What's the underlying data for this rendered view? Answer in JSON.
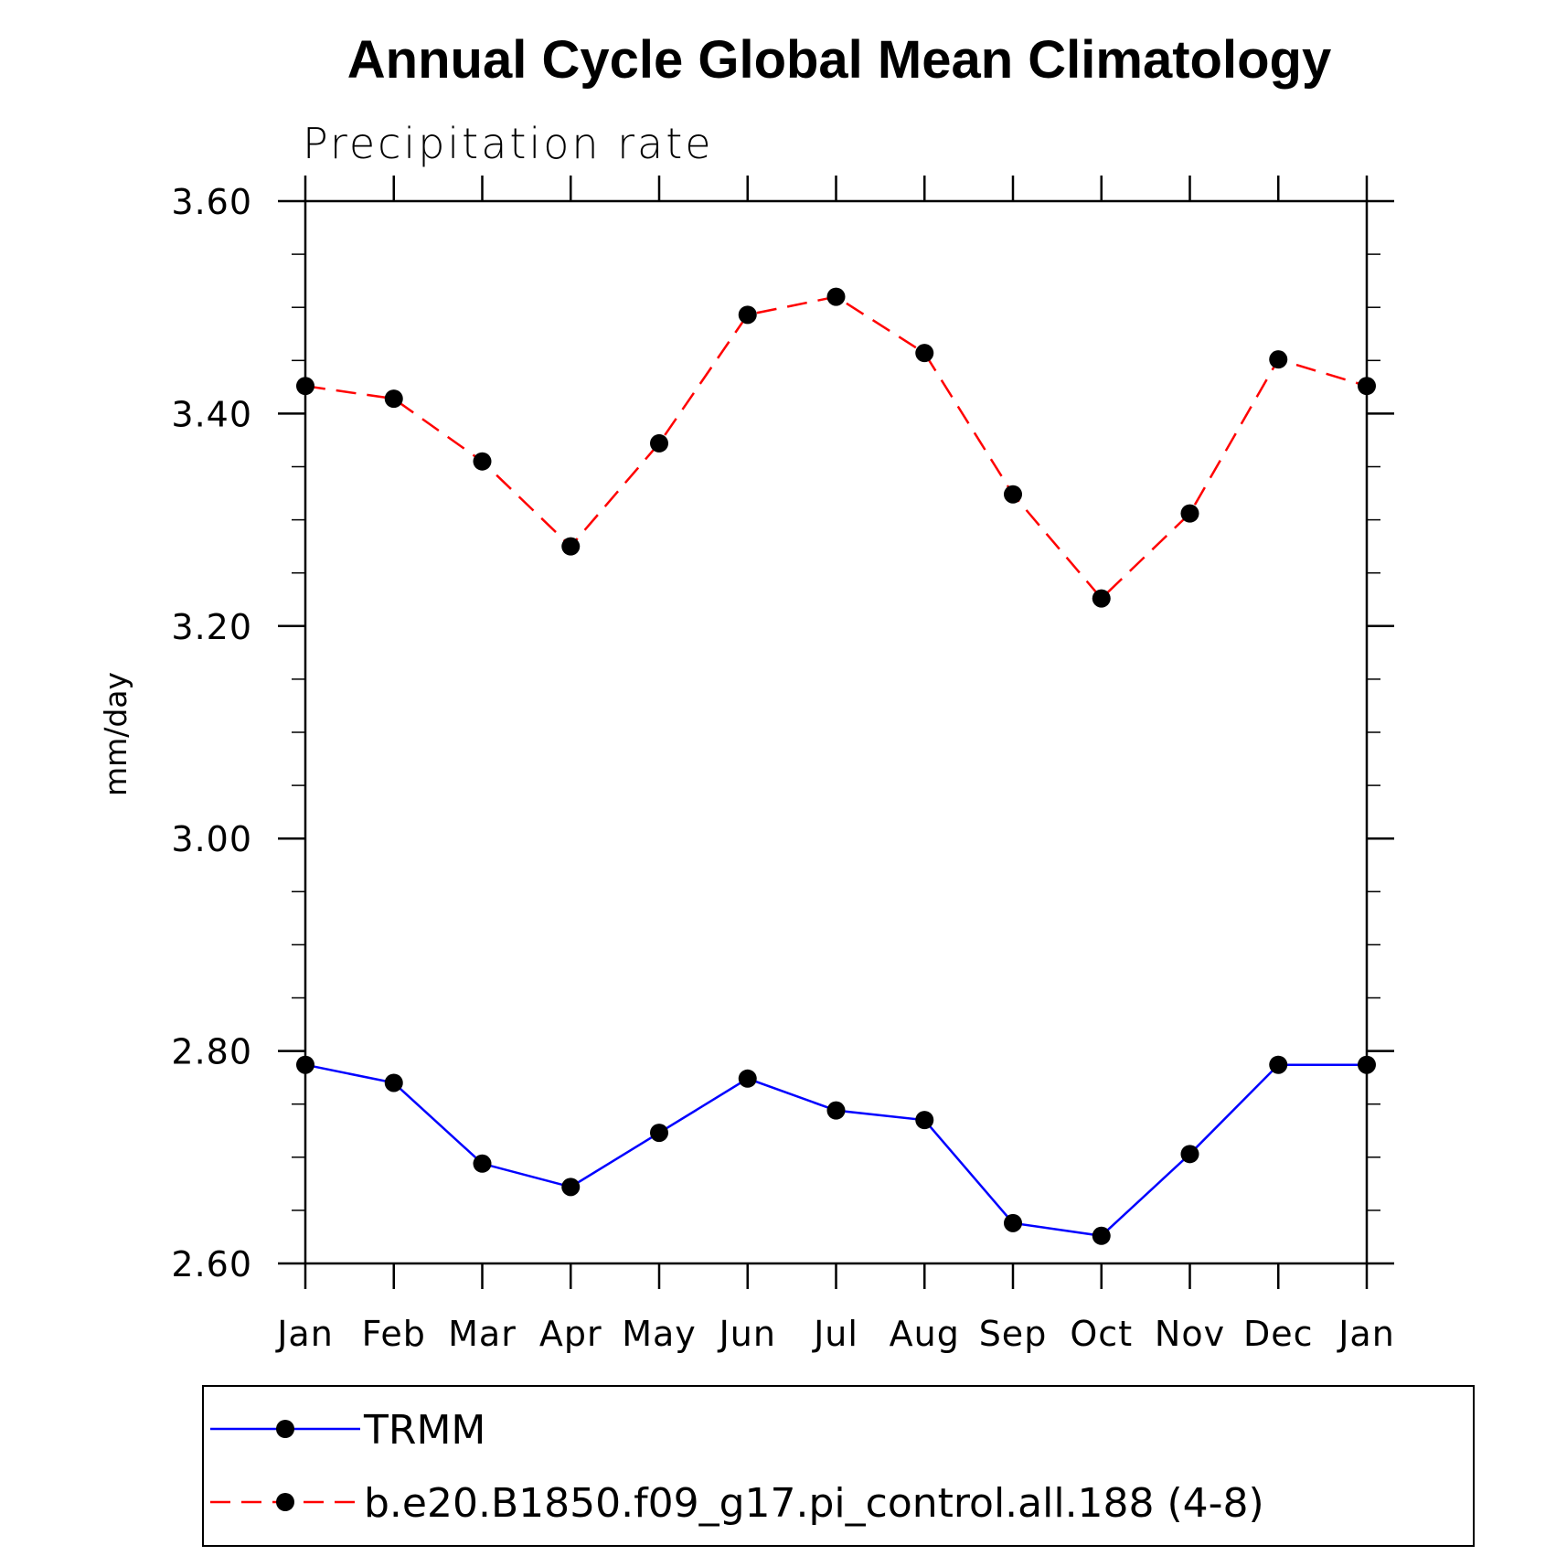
{
  "chart_data": {
    "type": "line",
    "title": "Annual Cycle Global Mean Climatology",
    "subtitle": "Precipitation rate",
    "xlabel": "",
    "ylabel": "mm/day",
    "ylim": [
      2.6,
      3.6
    ],
    "yticks": [
      "2.60",
      "2.80",
      "3.00",
      "3.20",
      "3.40",
      "3.60"
    ],
    "ytick_values": [
      2.6,
      2.8,
      3.0,
      3.2,
      3.4,
      3.6
    ],
    "y_minor_step": 0.05,
    "categories": [
      "Jan",
      "Feb",
      "Mar",
      "Apr",
      "May",
      "Jun",
      "Jul",
      "Aug",
      "Sep",
      "Oct",
      "Nov",
      "Dec",
      "Jan"
    ],
    "grid": false,
    "legend_position": "bottom",
    "series": [
      {
        "name": "TRMM",
        "color": "#0000ff",
        "line_style": "solid",
        "marker": "filled-circle",
        "values": [
          2.787,
          2.77,
          2.694,
          2.672,
          2.723,
          2.774,
          2.744,
          2.735,
          2.638,
          2.626,
          2.703,
          2.787,
          2.787
        ]
      },
      {
        "name": "b.e20.B1850.f09_g17.pi_control.all.188 (4-8)",
        "color": "#ff0000",
        "line_style": "dashed",
        "marker": "filled-circle",
        "values": [
          3.426,
          3.414,
          3.355,
          3.275,
          3.372,
          3.493,
          3.51,
          3.457,
          3.324,
          3.226,
          3.306,
          3.451,
          3.426
        ]
      }
    ]
  }
}
